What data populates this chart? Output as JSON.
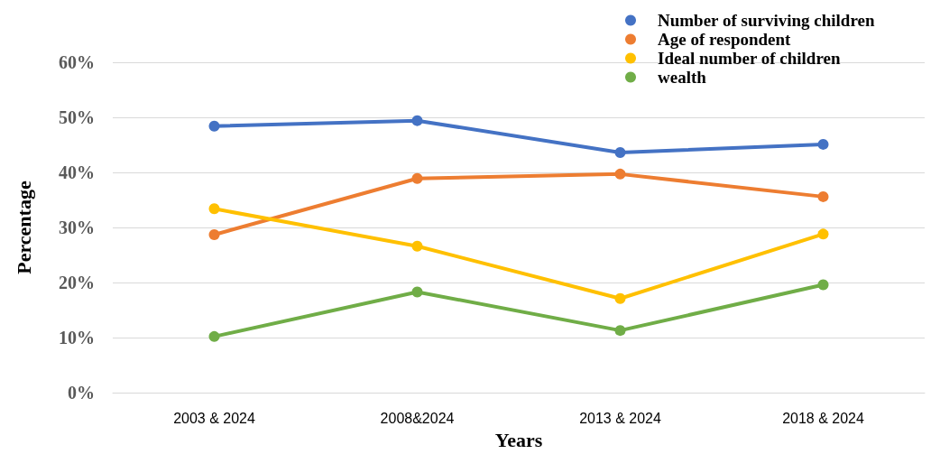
{
  "chart_data": {
    "type": "line",
    "xlabel": "Years",
    "ylabel": "Percentage",
    "categories": [
      "2003 & 2024",
      "2008&2024",
      "2013 & 2024",
      "2018 & 2024"
    ],
    "series": [
      {
        "name": "Number of surviving children",
        "color": "#4472c4",
        "values": [
          48.4,
          49.4,
          43.6,
          45.1
        ]
      },
      {
        "name": "Age of respondent",
        "color": "#ed7d31",
        "values": [
          28.7,
          38.9,
          39.7,
          35.6
        ]
      },
      {
        "name": "Ideal number of children",
        "color": "#ffc000",
        "values": [
          33.4,
          26.6,
          17.1,
          28.8
        ]
      },
      {
        "name": "wealth",
        "color": "#70ad47",
        "values": [
          10.2,
          18.3,
          11.3,
          19.6
        ]
      }
    ],
    "ylim": [
      0,
      60
    ],
    "yticks": [
      {
        "value": 0,
        "label": "0%"
      },
      {
        "value": 10,
        "label": "10%"
      },
      {
        "value": 20,
        "label": "20%"
      },
      {
        "value": 30,
        "label": "30%"
      },
      {
        "value": 40,
        "label": "40%"
      },
      {
        "value": 50,
        "label": "50%"
      },
      {
        "value": 60,
        "label": "60%"
      }
    ],
    "grid": "y",
    "legend": "top right",
    "marker": "circle",
    "line_style": "solid"
  }
}
